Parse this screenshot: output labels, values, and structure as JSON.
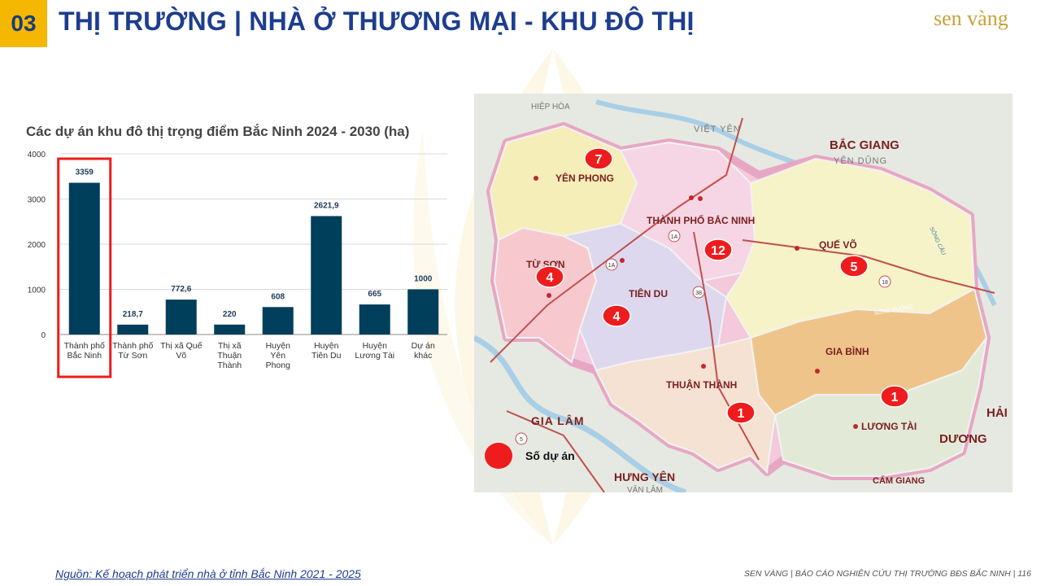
{
  "header": {
    "section_number": "03",
    "title": "THỊ TRƯỜNG | NHÀ Ở THƯƠNG MẠI - KHU ĐÔ THỊ",
    "logo_text": "sen vàng",
    "brand_color": "#f5b800",
    "title_color": "#1d3d8f"
  },
  "chart_data": {
    "type": "bar",
    "title": "Các dự án khu đô thị trọng điểm Bắc Ninh 2024 - 2030 (ha)",
    "categories": [
      [
        "Thành phố",
        "Bắc Ninh"
      ],
      [
        "Thành phố",
        "Từ Sơn"
      ],
      [
        "Thị xã Quế",
        "Võ"
      ],
      [
        "Thị xã",
        "Thuận",
        "Thành"
      ],
      [
        "Huyện",
        "Yên",
        "Phong"
      ],
      [
        "Huyện",
        "Tiên Du"
      ],
      [
        "Huyện",
        "Lương Tài"
      ],
      [
        "Dự án",
        "khác"
      ]
    ],
    "values": [
      3359,
      218.7,
      772.6,
      220,
      608,
      2621.9,
      665,
      1000
    ],
    "value_labels": [
      "3359",
      "218,7",
      "772,6",
      "220",
      "608",
      "2621,9",
      "665",
      "1000"
    ],
    "yticks": [
      "0",
      "1000",
      "2000",
      "3000",
      "4000"
    ],
    "ylim": [
      0,
      4000
    ],
    "bar_color": "#003f5c",
    "highlight_index": 0,
    "highlight_color": "#ee1c1c",
    "grid": true
  },
  "map": {
    "regions": [
      {
        "name": "YÊN PHONG",
        "projects": "7"
      },
      {
        "name": "THÀNH PHỐ BẮC NINH",
        "projects": "12"
      },
      {
        "name": "TỪ SƠN",
        "projects": "4"
      },
      {
        "name": "TIÊN DU",
        "projects": "4"
      },
      {
        "name": "QUẾ VÕ",
        "projects": "5"
      },
      {
        "name": "GIA BÌNH",
        "projects": ""
      },
      {
        "name": "THUẬN THÀNH",
        "projects": "1"
      },
      {
        "name": "LƯƠNG TÀI",
        "projects": "1"
      }
    ],
    "outside_labels": [
      "HIỆP HÒA",
      "VIỆT YÊN",
      "BẮC GIANG",
      "YÊN DŨNG",
      "GIA LÂM",
      "HƯNG YÊN",
      "VĂN LÂM",
      "HẢI",
      "DƯƠNG",
      "CẨM GIANG",
      "SÔNG ĐUỐNG",
      "SÔNG CẦU"
    ],
    "road_labels": [
      "1A",
      "1A",
      "38",
      "18",
      "5"
    ],
    "legend_label": "Số dự án",
    "marker_color": "#ee1c1c"
  },
  "footer": {
    "source": "Nguồn: Kế hoạch phát triển nhà ở tỉnh Bắc Ninh 2021 - 2025",
    "report": "SEN VÀNG | BÁO CÁO NGHIÊN CỨU THỊ TRƯỜNG BĐS BẮC NINH | 116"
  }
}
